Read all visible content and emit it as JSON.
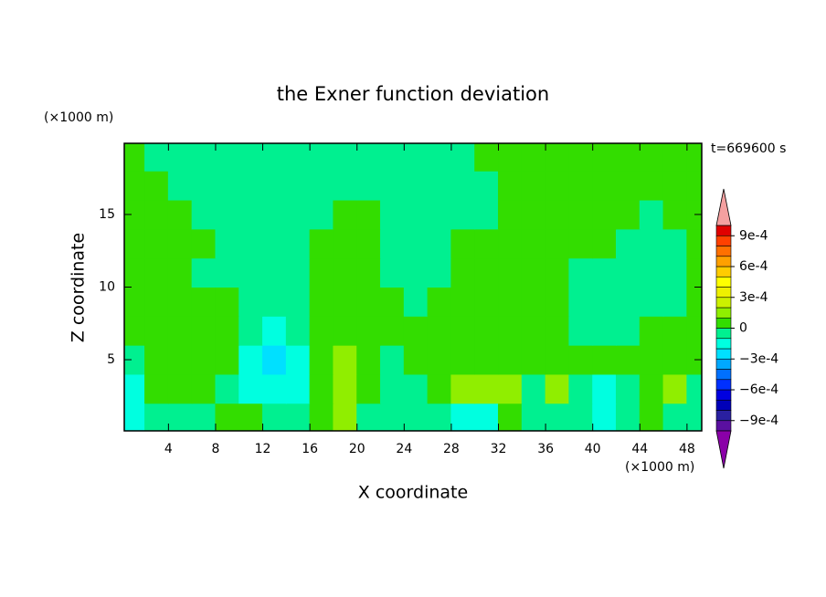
{
  "chart_data": {
    "type": "contour",
    "title": "the Exner function deviation",
    "x_label": "X coordinate",
    "y_label": "Z coordinate",
    "x_unit_label": "(×1000 m)",
    "y_unit_label": "(×1000 m)",
    "annotation": "t=669600 s",
    "xlim": [
      0.25,
      49.25
    ],
    "ylim": [
      0.1,
      19.9
    ],
    "xticks": [
      4,
      8,
      12,
      16,
      20,
      24,
      28,
      32,
      36,
      40,
      44,
      48
    ],
    "yticks": [
      5,
      10,
      15
    ],
    "x": [
      1,
      3,
      5,
      7,
      9,
      11,
      13,
      15,
      17,
      19,
      21,
      23,
      25,
      27,
      29,
      31,
      33,
      35,
      37,
      39,
      41,
      43,
      45,
      47,
      49
    ],
    "y": [
      1,
      3,
      5,
      7,
      9,
      11,
      13,
      15,
      17,
      19
    ],
    "z": [
      [
        -0.00015,
        -5e-05,
        -5e-05,
        -5e-05,
        5e-05,
        5e-05,
        -5e-05,
        -5e-05,
        5e-05,
        0.00015,
        -5e-05,
        -5e-05,
        -5e-05,
        -5e-05,
        -0.00015,
        -0.00015,
        5e-05,
        -5e-05,
        -5e-05,
        -5e-05,
        -0.00015,
        -5e-05,
        5e-05,
        -5e-05,
        -5e-05
      ],
      [
        -0.00015,
        5e-05,
        5e-05,
        5e-05,
        -5e-05,
        -0.00015,
        -0.00015,
        -0.00015,
        5e-05,
        0.00015,
        5e-05,
        -5e-05,
        -5e-05,
        5e-05,
        0.00015,
        0.00015,
        0.00015,
        -5e-05,
        0.00015,
        -5e-05,
        -0.00015,
        -5e-05,
        5e-05,
        0.00015,
        -5e-05
      ],
      [
        -5e-05,
        5e-05,
        5e-05,
        5e-05,
        5e-05,
        -0.00015,
        -0.00025,
        -0.00015,
        5e-05,
        0.00015,
        5e-05,
        -5e-05,
        5e-05,
        5e-05,
        5e-05,
        5e-05,
        5e-05,
        5e-05,
        5e-05,
        5e-05,
        5e-05,
        5e-05,
        5e-05,
        5e-05,
        5e-05
      ],
      [
        5e-05,
        5e-05,
        5e-05,
        5e-05,
        5e-05,
        -5e-05,
        -0.00015,
        -5e-05,
        5e-05,
        5e-05,
        5e-05,
        5e-05,
        5e-05,
        5e-05,
        5e-05,
        5e-05,
        5e-05,
        5e-05,
        5e-05,
        -5e-05,
        -5e-05,
        -5e-05,
        5e-05,
        5e-05,
        5e-05
      ],
      [
        5e-05,
        5e-05,
        5e-05,
        5e-05,
        5e-05,
        -5e-05,
        -5e-05,
        -5e-05,
        5e-05,
        5e-05,
        5e-05,
        5e-05,
        -5e-05,
        5e-05,
        5e-05,
        5e-05,
        5e-05,
        5e-05,
        5e-05,
        -5e-05,
        -5e-05,
        -5e-05,
        -5e-05,
        -5e-05,
        5e-05
      ],
      [
        5e-05,
        5e-05,
        5e-05,
        -5e-05,
        -5e-05,
        -5e-05,
        -5e-05,
        -5e-05,
        5e-05,
        5e-05,
        5e-05,
        -5e-05,
        -5e-05,
        -5e-05,
        5e-05,
        5e-05,
        5e-05,
        5e-05,
        5e-05,
        -5e-05,
        -5e-05,
        -5e-05,
        -5e-05,
        -5e-05,
        5e-05
      ],
      [
        5e-05,
        5e-05,
        5e-05,
        5e-05,
        -5e-05,
        -5e-05,
        -5e-05,
        -5e-05,
        5e-05,
        5e-05,
        5e-05,
        -5e-05,
        -5e-05,
        -5e-05,
        5e-05,
        5e-05,
        5e-05,
        5e-05,
        5e-05,
        5e-05,
        5e-05,
        -5e-05,
        -5e-05,
        -5e-05,
        5e-05
      ],
      [
        5e-05,
        5e-05,
        5e-05,
        -5e-05,
        -5e-05,
        -5e-05,
        -5e-05,
        -5e-05,
        -5e-05,
        5e-05,
        5e-05,
        -5e-05,
        -5e-05,
        -5e-05,
        -5e-05,
        -5e-05,
        5e-05,
        5e-05,
        5e-05,
        5e-05,
        5e-05,
        5e-05,
        -5e-05,
        5e-05,
        5e-05
      ],
      [
        5e-05,
        5e-05,
        -5e-05,
        -5e-05,
        -5e-05,
        -5e-05,
        -5e-05,
        -5e-05,
        -5e-05,
        -5e-05,
        -5e-05,
        -5e-05,
        -5e-05,
        -5e-05,
        -5e-05,
        -5e-05,
        5e-05,
        5e-05,
        5e-05,
        5e-05,
        5e-05,
        5e-05,
        5e-05,
        5e-05,
        5e-05
      ],
      [
        5e-05,
        -5e-05,
        -5e-05,
        -5e-05,
        -5e-05,
        -5e-05,
        -5e-05,
        -5e-05,
        -5e-05,
        -5e-05,
        -5e-05,
        -5e-05,
        -5e-05,
        -5e-05,
        -5e-05,
        5e-05,
        5e-05,
        5e-05,
        5e-05,
        5e-05,
        5e-05,
        5e-05,
        5e-05,
        5e-05,
        5e-05
      ]
    ],
    "levels": [
      -0.001,
      -0.0009,
      -0.0008,
      -0.0007,
      -0.0006,
      -0.0005,
      -0.0004,
      -0.0003,
      -0.0002,
      -0.0001,
      0,
      0.0001,
      0.0002,
      0.0003,
      0.0004,
      0.0005,
      0.0006,
      0.0007,
      0.0008,
      0.0009,
      0.001
    ],
    "colors": [
      "#8a00a8",
      "#5a10a0",
      "#2a20a0",
      "#0000b8",
      "#0000e0",
      "#0030ff",
      "#0070ff",
      "#00a8ff",
      "#00e0ff",
      "#00ffe0",
      "#00f090",
      "#33dd00",
      "#90ee00",
      "#ccf000",
      "#eef000",
      "#ffff00",
      "#ffcc00",
      "#ffa000",
      "#ff7000",
      "#ff4000",
      "#e00000",
      "#f4a0a0"
    ],
    "colorbar_ticks": [
      {
        "value": 0.0009,
        "label": "9e-4"
      },
      {
        "value": 0.0006,
        "label": "6e-4"
      },
      {
        "value": 0.0003,
        "label": "3e-4"
      },
      0,
      {
        "value": -0.0003,
        "label": "−3e-4"
      },
      {
        "value": -0.0006,
        "label": "−6e-4"
      },
      {
        "value": -0.0009,
        "label": "−9e-4"
      }
    ]
  }
}
